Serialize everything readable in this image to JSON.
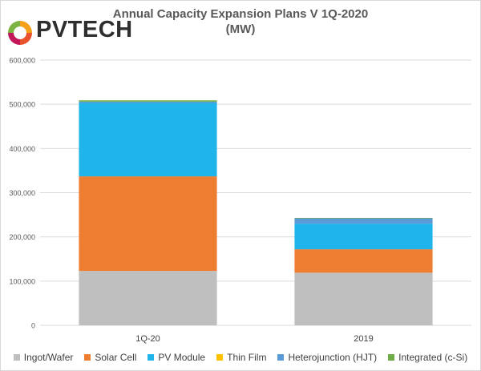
{
  "header": {
    "logo_text": "PVTECH",
    "title_line1": "Annual Capacity Expansion Plans V 1Q-2020",
    "title_line2": "(MW)"
  },
  "colors": {
    "ingot_wafer": "#bfbfbf",
    "solar_cell": "#ed7d31",
    "pv_module": "#1fb5ea",
    "thin_film": "#ffc000",
    "hjt": "#5b9bd5",
    "integrated": "#70ad47",
    "gridline": "#d9d9d9",
    "axis_text": "#595959"
  },
  "chart_data": {
    "type": "bar",
    "stacked": true,
    "title": "Annual Capacity Expansion Plans V 1Q-2020",
    "subtitle": "(MW)",
    "categories": [
      "1Q-20",
      "2019"
    ],
    "ylim": [
      0,
      600000
    ],
    "yticks": [
      0,
      100000,
      200000,
      300000,
      400000,
      500000,
      600000
    ],
    "ytick_labels": [
      "0",
      "100,000",
      "200,000",
      "300,000",
      "400,000",
      "500,000",
      "600,000"
    ],
    "grid": true,
    "legend_position": "bottom",
    "series": [
      {
        "name": "Ingot/Wafer",
        "color_key": "ingot_wafer",
        "values": [
          123000,
          119000
        ]
      },
      {
        "name": "Solar Cell",
        "color_key": "solar_cell",
        "values": [
          214000,
          53000
        ]
      },
      {
        "name": "PV Module",
        "color_key": "pv_module",
        "values": [
          166000,
          58000
        ]
      },
      {
        "name": "Thin Film",
        "color_key": "thin_film",
        "values": [
          0,
          0
        ]
      },
      {
        "name": "Heterojunction (HJT)",
        "color_key": "hjt",
        "values": [
          3000,
          12000
        ]
      },
      {
        "name": "Integrated (c-Si)",
        "color_key": "integrated",
        "values": [
          3000,
          1000
        ]
      }
    ]
  }
}
